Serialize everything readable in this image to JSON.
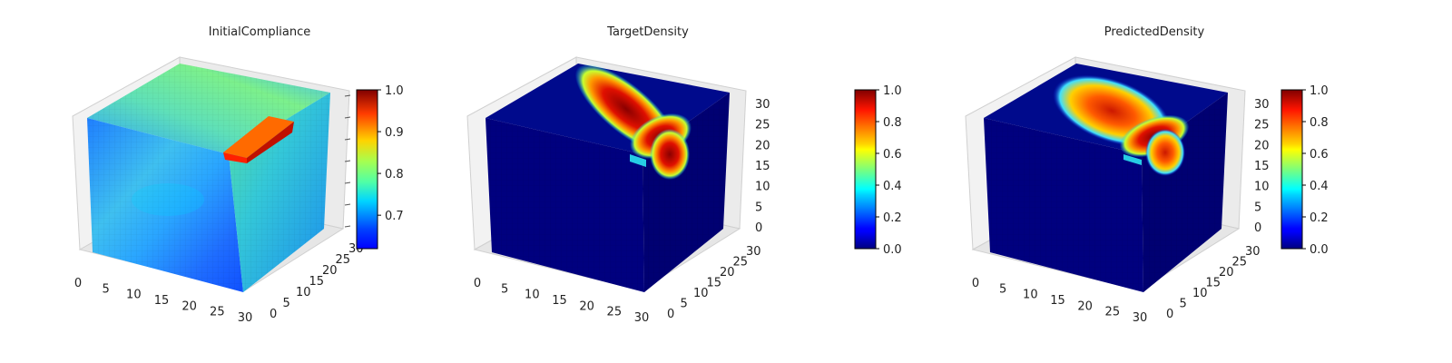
{
  "chart_data": [
    {
      "type": "heatmap",
      "title": "InitialCompliance",
      "subtype": "3d-voxel",
      "xticks": [
        "0",
        "5",
        "10",
        "15",
        "20",
        "25",
        "30"
      ],
      "yticks": [
        "0",
        "5",
        "10",
        "15",
        "20",
        "25",
        "30"
      ],
      "zticks": [],
      "colorbar": {
        "min": 0.62,
        "max": 1.0,
        "ticks": [
          "0.7",
          "0.8",
          "0.9",
          "1.0"
        ],
        "tick_values": [
          0.7,
          0.8,
          0.9,
          1.0
        ],
        "colormap": "jet"
      },
      "grid": true
    },
    {
      "type": "heatmap",
      "title": "TargetDensity",
      "subtype": "3d-voxel",
      "xticks": [
        "0",
        "5",
        "10",
        "15",
        "20",
        "25",
        "30"
      ],
      "yticks": [
        "0",
        "5",
        "10",
        "15",
        "20",
        "25",
        "30"
      ],
      "zticks": [
        "0",
        "5",
        "10",
        "15",
        "20",
        "25",
        "30"
      ],
      "colorbar": {
        "min": 0.0,
        "max": 1.0,
        "ticks": [
          "0.0",
          "0.2",
          "0.4",
          "0.6",
          "0.8",
          "1.0"
        ],
        "tick_values": [
          0.0,
          0.2,
          0.4,
          0.6,
          0.8,
          1.0
        ],
        "colormap": "jet"
      },
      "grid": true
    },
    {
      "type": "heatmap",
      "title": "PredictedDensity",
      "subtype": "3d-voxel",
      "xticks": [
        "0",
        "5",
        "10",
        "15",
        "20",
        "25",
        "30"
      ],
      "yticks": [
        "0",
        "5",
        "10",
        "15",
        "20",
        "25",
        "30"
      ],
      "zticks": [
        "0",
        "5",
        "10",
        "15",
        "20",
        "25",
        "30"
      ],
      "colorbar": {
        "min": 0.0,
        "max": 1.0,
        "ticks": [
          "0.0",
          "0.2",
          "0.4",
          "0.6",
          "0.8",
          "1.0"
        ],
        "tick_values": [
          0.0,
          0.2,
          0.4,
          0.6,
          0.8,
          1.0
        ],
        "colormap": "jet"
      },
      "grid": true
    }
  ]
}
